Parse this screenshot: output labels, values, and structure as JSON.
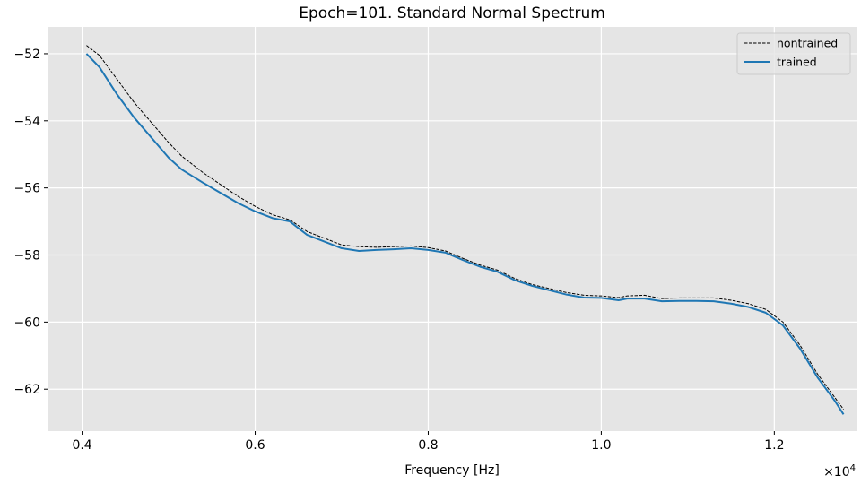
{
  "chart_data": {
    "type": "line",
    "title": "Epoch=101. Standard Normal Spectrum",
    "xlabel": "Frequency [Hz]",
    "ylabel": "",
    "x_offset_text": "×10^4",
    "xlim": [
      3600,
      12950
    ],
    "ylim": [
      -63.25,
      -51.2
    ],
    "x_ticks": [
      4000,
      6000,
      8000,
      10000,
      12000
    ],
    "x_tick_labels": [
      "0.4",
      "0.6",
      "0.8",
      "1.0",
      "1.2"
    ],
    "y_ticks": [
      -52,
      -54,
      -56,
      -58,
      -60,
      -62
    ],
    "y_tick_labels": [
      "−52",
      "−54",
      "−56",
      "−58",
      "−60",
      "−62"
    ],
    "grid": true,
    "legend_position": "top-right",
    "background": "#e5e5e5",
    "series": [
      {
        "name": "nontrained",
        "color": "#000000",
        "style": "dashed",
        "x": [
          4050,
          4200,
          4400,
          4600,
          4800,
          5000,
          5150,
          5400,
          5600,
          5800,
          6000,
          6200,
          6400,
          6600,
          6800,
          7000,
          7200,
          7400,
          7600,
          7800,
          8000,
          8200,
          8400,
          8600,
          8800,
          9000,
          9200,
          9400,
          9600,
          9800,
          10000,
          10200,
          10300,
          10500,
          10700,
          10900,
          11100,
          11300,
          11500,
          11700,
          11900,
          12100,
          12300,
          12500,
          12700,
          12800
        ],
        "values": [
          -51.75,
          -52.05,
          -52.75,
          -53.45,
          -54.05,
          -54.65,
          -55.05,
          -55.55,
          -55.9,
          -56.25,
          -56.55,
          -56.8,
          -56.95,
          -57.3,
          -57.5,
          -57.7,
          -57.75,
          -57.77,
          -57.75,
          -57.73,
          -57.78,
          -57.88,
          -58.1,
          -58.3,
          -58.45,
          -58.7,
          -58.88,
          -59.0,
          -59.12,
          -59.2,
          -59.22,
          -59.27,
          -59.22,
          -59.2,
          -59.3,
          -59.28,
          -59.28,
          -59.28,
          -59.35,
          -59.45,
          -59.62,
          -60.0,
          -60.7,
          -61.55,
          -62.25,
          -62.6
        ]
      },
      {
        "name": "trained",
        "color": "#1f77b4",
        "style": "solid",
        "x": [
          4050,
          4200,
          4400,
          4600,
          4800,
          5000,
          5150,
          5400,
          5600,
          5800,
          6000,
          6200,
          6400,
          6600,
          6800,
          7000,
          7200,
          7400,
          7600,
          7800,
          8000,
          8200,
          8400,
          8600,
          8800,
          9000,
          9200,
          9400,
          9600,
          9800,
          10000,
          10200,
          10300,
          10500,
          10700,
          10900,
          11100,
          11300,
          11500,
          11700,
          11900,
          12100,
          12300,
          12500,
          12700,
          12800
        ],
        "values": [
          -52.0,
          -52.4,
          -53.2,
          -53.9,
          -54.5,
          -55.1,
          -55.45,
          -55.85,
          -56.15,
          -56.45,
          -56.7,
          -56.9,
          -57.0,
          -57.4,
          -57.6,
          -57.8,
          -57.88,
          -57.85,
          -57.83,
          -57.8,
          -57.85,
          -57.93,
          -58.15,
          -58.35,
          -58.5,
          -58.75,
          -58.92,
          -59.05,
          -59.18,
          -59.27,
          -59.28,
          -59.35,
          -59.3,
          -59.3,
          -59.38,
          -59.37,
          -59.37,
          -59.38,
          -59.45,
          -59.55,
          -59.72,
          -60.1,
          -60.8,
          -61.65,
          -62.35,
          -62.75
        ]
      }
    ]
  }
}
